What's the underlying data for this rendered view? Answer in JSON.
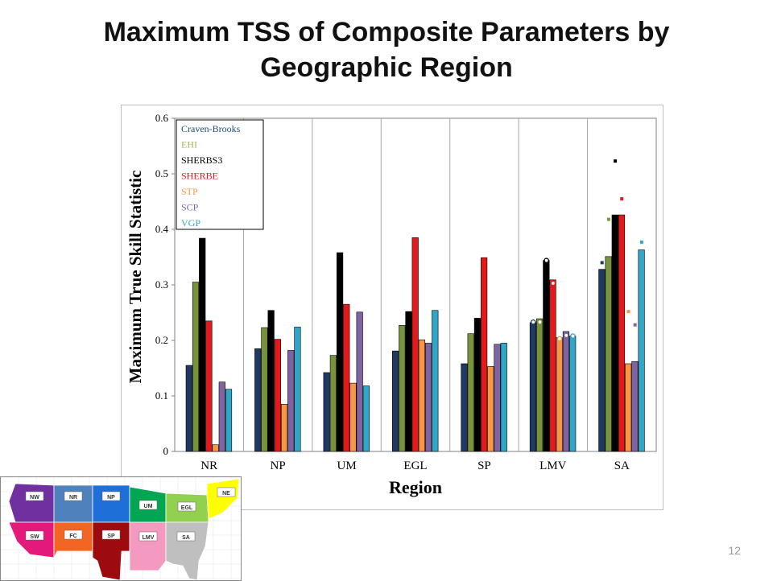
{
  "slide": {
    "title_line1": "Maximum TSS of Composite Parameters by",
    "title_line2": "Geographic Region",
    "page_number": "12"
  },
  "chart_data": {
    "type": "bar",
    "title": "",
    "xlabel": "Region",
    "ylabel": "Maximum True Skill Statistic",
    "ylim": [
      0,
      0.6
    ],
    "yticks": [
      "0",
      "0.1",
      "0.2",
      "0.3",
      "0.4",
      "0.5",
      "0.6"
    ],
    "grid": "vertical lines between categories",
    "legend_position": "top-left",
    "categories": [
      "NR",
      "NP",
      "UM",
      "EGL",
      "SP",
      "LMV",
      "SA"
    ],
    "series": [
      {
        "name": "Craven-Brooks",
        "color": "#1f3864",
        "label_color": "#1f497d",
        "values": [
          0.155,
          0.185,
          0.142,
          0.181,
          0.158,
          0.232,
          0.328
        ]
      },
      {
        "name": "EHI",
        "color": "#77933c",
        "label_color": "#9bbb59",
        "values": [
          0.305,
          0.223,
          0.173,
          0.227,
          0.212,
          0.239,
          0.351
        ]
      },
      {
        "name": "SHERBS3",
        "color": "#000000",
        "label_color": "#000000",
        "values": [
          0.384,
          0.254,
          0.358,
          0.252,
          0.24,
          0.344,
          0.426
        ]
      },
      {
        "name": "SHERBE",
        "color": "#e31a1c",
        "label_color": "#e31a1c",
        "values": [
          0.235,
          0.202,
          0.265,
          0.385,
          0.349,
          0.309,
          0.426
        ]
      },
      {
        "name": "STP",
        "color": "#f79646",
        "label_color": "#f79646",
        "values": [
          0.012,
          0.085,
          0.123,
          0.201,
          0.153,
          0.205,
          0.158
        ]
      },
      {
        "name": "SCP",
        "color": "#8064a2",
        "label_color": "#8064a2",
        "values": [
          0.125,
          0.182,
          0.251,
          0.195,
          0.193,
          0.216,
          0.162
        ]
      },
      {
        "name": "VGP",
        "color": "#31a6c6",
        "label_color": "#31a6c6",
        "values": [
          0.112,
          0.224,
          0.118,
          0.254,
          0.195,
          0.208,
          0.363
        ]
      }
    ],
    "markers": [
      {
        "region": "LMV",
        "series": "Craven-Brooks",
        "value": 0.233,
        "style": "hollow"
      },
      {
        "region": "LMV",
        "series": "EHI",
        "value": 0.233,
        "style": "hollow"
      },
      {
        "region": "LMV",
        "series": "SHERBS3",
        "value": 0.344,
        "style": "hollow"
      },
      {
        "region": "LMV",
        "series": "SHERBE",
        "value": 0.303,
        "style": "hollow"
      },
      {
        "region": "LMV",
        "series": "STP",
        "value": 0.203,
        "style": "hollow"
      },
      {
        "region": "LMV",
        "series": "SCP",
        "value": 0.209,
        "style": "hollow"
      },
      {
        "region": "LMV",
        "series": "VGP",
        "value": 0.208,
        "style": "hollow"
      },
      {
        "region": "SA",
        "series": "Craven-Brooks",
        "value": 0.34,
        "style": "solid"
      },
      {
        "region": "SA",
        "series": "EHI",
        "value": 0.418,
        "style": "solid"
      },
      {
        "region": "SA",
        "series": "SHERBS3",
        "value": 0.523,
        "style": "solid"
      },
      {
        "region": "SA",
        "series": "SHERBE",
        "value": 0.455,
        "style": "solid"
      },
      {
        "region": "SA",
        "series": "STP",
        "value": 0.252,
        "style": "solid"
      },
      {
        "region": "SA",
        "series": "SCP",
        "value": 0.228,
        "style": "solid"
      },
      {
        "region": "SA",
        "series": "VGP",
        "value": 0.377,
        "style": "solid"
      }
    ]
  },
  "region_map": {
    "regions": [
      {
        "code": "NW",
        "color": "#7030a0"
      },
      {
        "code": "NR",
        "color": "#4f81bd"
      },
      {
        "code": "NP",
        "color": "#1e6fd8"
      },
      {
        "code": "UM",
        "color": "#00a651"
      },
      {
        "code": "EGL",
        "color": "#92d050"
      },
      {
        "code": "NE",
        "color": "#ffff00"
      },
      {
        "code": "SW",
        "color": "#e31a7c"
      },
      {
        "code": "FC",
        "color": "#f26522"
      },
      {
        "code": "SP",
        "color": "#9e0b0f"
      },
      {
        "code": "LMV",
        "color": "#f49ac1"
      },
      {
        "code": "SA",
        "color": "#bfbfbf"
      }
    ]
  }
}
